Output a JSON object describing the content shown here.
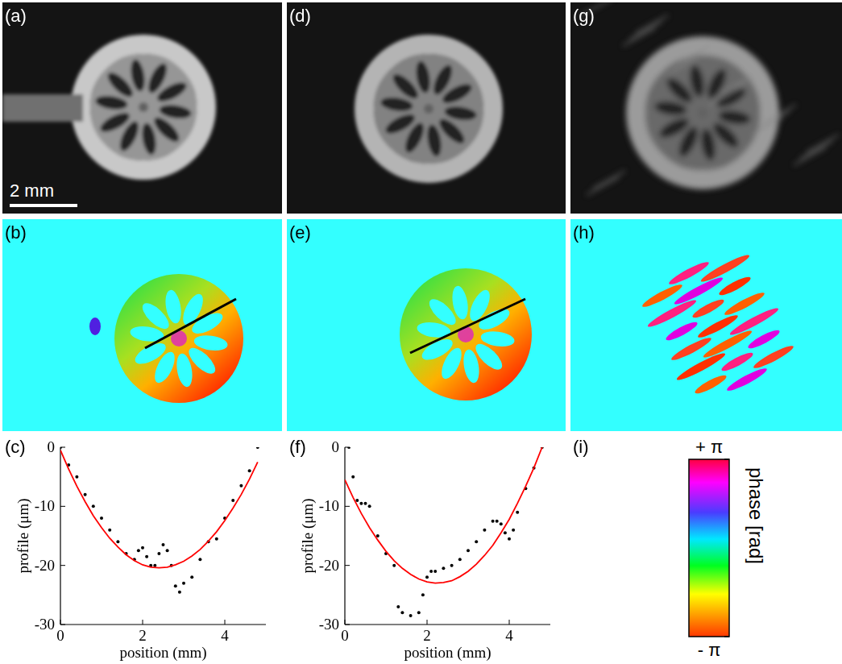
{
  "panel_labels": [
    "(a)",
    "(b)",
    "(c)",
    "(d)",
    "(e)",
    "(f)",
    "(g)",
    "(h)",
    "(i)"
  ],
  "scale_bar": "2 mm",
  "colorbar": {
    "label": "phase [rad]",
    "range": [
      -3.1416,
      3.1416
    ],
    "ticks": [
      {
        "value": 3.1416,
        "label": "+ π"
      },
      {
        "value": -3.1416,
        "label": "- π"
      }
    ]
  },
  "chart_data": [
    {
      "type": "line",
      "x_label": "position (mm)",
      "y_label": "profile (μm)",
      "xlim": [
        0,
        5
      ],
      "ylim": [
        -30,
        0
      ],
      "xticks": [
        0,
        2,
        4
      ],
      "yticks": [
        0,
        -10,
        -20,
        -30
      ],
      "grid": false,
      "series": [
        {
          "color": "#000000",
          "marker": "dot",
          "line_style": "none",
          "x": [
            0,
            0.2,
            0.4,
            0.6,
            0.8,
            1.0,
            1.2,
            1.4,
            1.6,
            1.8,
            1.9,
            2.0,
            2.1,
            2.2,
            2.3,
            2.4,
            2.5,
            2.6,
            2.7,
            2.8,
            2.9,
            3.0,
            3.2,
            3.4,
            3.6,
            3.8,
            4.0,
            4.2,
            4.4,
            4.6,
            4.8
          ],
          "values": [
            0,
            -3,
            -5,
            -8,
            -10,
            -12,
            -14,
            -16,
            -18,
            -19,
            -17.5,
            -17,
            -18.5,
            -20,
            -20,
            -18,
            -16.5,
            -17.5,
            -20,
            -23.5,
            -24.5,
            -23,
            -22,
            -19,
            -16,
            -15.5,
            -12,
            -9,
            -6.5,
            -4,
            0
          ]
        },
        {
          "color": "#ff0000",
          "marker": "none",
          "line_style": "solid",
          "x": [
            0,
            0.2,
            0.4,
            0.6,
            0.8,
            1.0,
            1.2,
            1.4,
            1.6,
            1.8,
            2.0,
            2.2,
            2.4,
            2.6,
            2.8,
            3.0,
            3.2,
            3.4,
            3.6,
            3.8,
            4.0,
            4.2,
            4.4,
            4.6,
            4.8
          ],
          "values": [
            -0.5,
            -3.7,
            -6.6,
            -9.2,
            -11.6,
            -13.6,
            -15.4,
            -16.9,
            -18.2,
            -19.2,
            -19.9,
            -20.3,
            -20.4,
            -20.3,
            -19.9,
            -19.3,
            -18.4,
            -17.3,
            -15.9,
            -14.3,
            -12.4,
            -10.3,
            -8.0,
            -5.4,
            -2.5
          ]
        }
      ]
    },
    {
      "type": "line",
      "x_label": "position (mm)",
      "y_label": "profile (μm)",
      "xlim": [
        0,
        5
      ],
      "ylim": [
        -30,
        0
      ],
      "xticks": [
        0,
        2,
        4
      ],
      "yticks": [
        0,
        -10,
        -20,
        -30
      ],
      "grid": false,
      "series": [
        {
          "color": "#000000",
          "marker": "dot",
          "line_style": "none",
          "x": [
            0.1,
            0.2,
            0.3,
            0.4,
            0.5,
            0.6,
            0.8,
            1.0,
            1.2,
            1.3,
            1.4,
            1.6,
            1.8,
            1.9,
            2.0,
            2.1,
            2.2,
            2.4,
            2.6,
            2.8,
            3.0,
            3.2,
            3.4,
            3.6,
            3.7,
            3.8,
            3.9,
            4.0,
            4.1,
            4.2,
            4.4,
            4.6,
            4.8
          ],
          "values": [
            0,
            -5,
            -9,
            -9.5,
            -9.5,
            -10,
            -15,
            -18,
            -20,
            -27,
            -28,
            -28.5,
            -28,
            -25,
            -22,
            -21,
            -21,
            -20.5,
            -20,
            -19,
            -17.5,
            -16,
            -14,
            -12.5,
            -12.5,
            -13,
            -14.5,
            -15.5,
            -14,
            -11,
            -7,
            -3.5,
            0
          ]
        },
        {
          "color": "#ff0000",
          "marker": "none",
          "line_style": "solid",
          "x": [
            0,
            0.2,
            0.4,
            0.6,
            0.8,
            1.0,
            1.2,
            1.4,
            1.6,
            1.8,
            2.0,
            2.2,
            2.4,
            2.6,
            2.8,
            3.0,
            3.2,
            3.4,
            3.6,
            3.8,
            4.0,
            4.2,
            4.4,
            4.6,
            4.8
          ],
          "values": [
            -5.5,
            -8.5,
            -11.2,
            -13.6,
            -15.7,
            -17.6,
            -19.2,
            -20.5,
            -21.5,
            -22.3,
            -22.8,
            -23.0,
            -22.9,
            -22.6,
            -21.9,
            -21.0,
            -19.8,
            -18.3,
            -16.6,
            -14.5,
            -12.2,
            -9.5,
            -6.6,
            -3.5,
            0
          ]
        }
      ]
    }
  ]
}
